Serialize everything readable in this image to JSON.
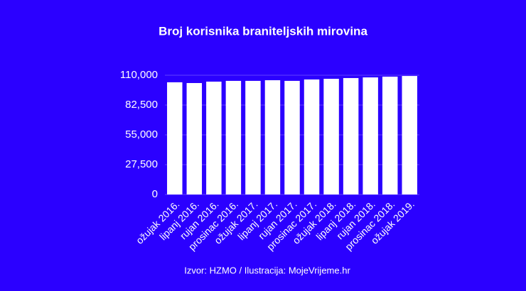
{
  "chart_data": {
    "type": "bar",
    "title": "Broj korisnika braniteljskih mirovina",
    "categories": [
      "ožujak 2016.",
      "lipanj 2016.",
      "rujan 2016.",
      "prosinac 2016.",
      "ožujak 2017.",
      "lipanj 2017.",
      "rujan 2017.",
      "prosinac 2017.",
      "ožujak 2018.",
      "lipanj 2018.",
      "rujan 2018.",
      "prosinac 2018.",
      "ožujak 2019."
    ],
    "values": [
      103500,
      102800,
      104100,
      104800,
      104800,
      105400,
      104800,
      106100,
      106700,
      107400,
      108000,
      108700,
      109300
    ],
    "color": "#ffffff",
    "ylim": [
      0,
      110000
    ],
    "yticks": [
      0,
      {
        "value": 27500,
        "label": "27,500"
      },
      {
        "value": 55000,
        "label": "55,000"
      },
      {
        "value": 82500,
        "label": "82,500"
      },
      {
        "value": 110000,
        "label": "110,000"
      }
    ],
    "grid": true,
    "source": "Izvor: HZMO / Ilustracija: MojeVrijeme.hr"
  }
}
